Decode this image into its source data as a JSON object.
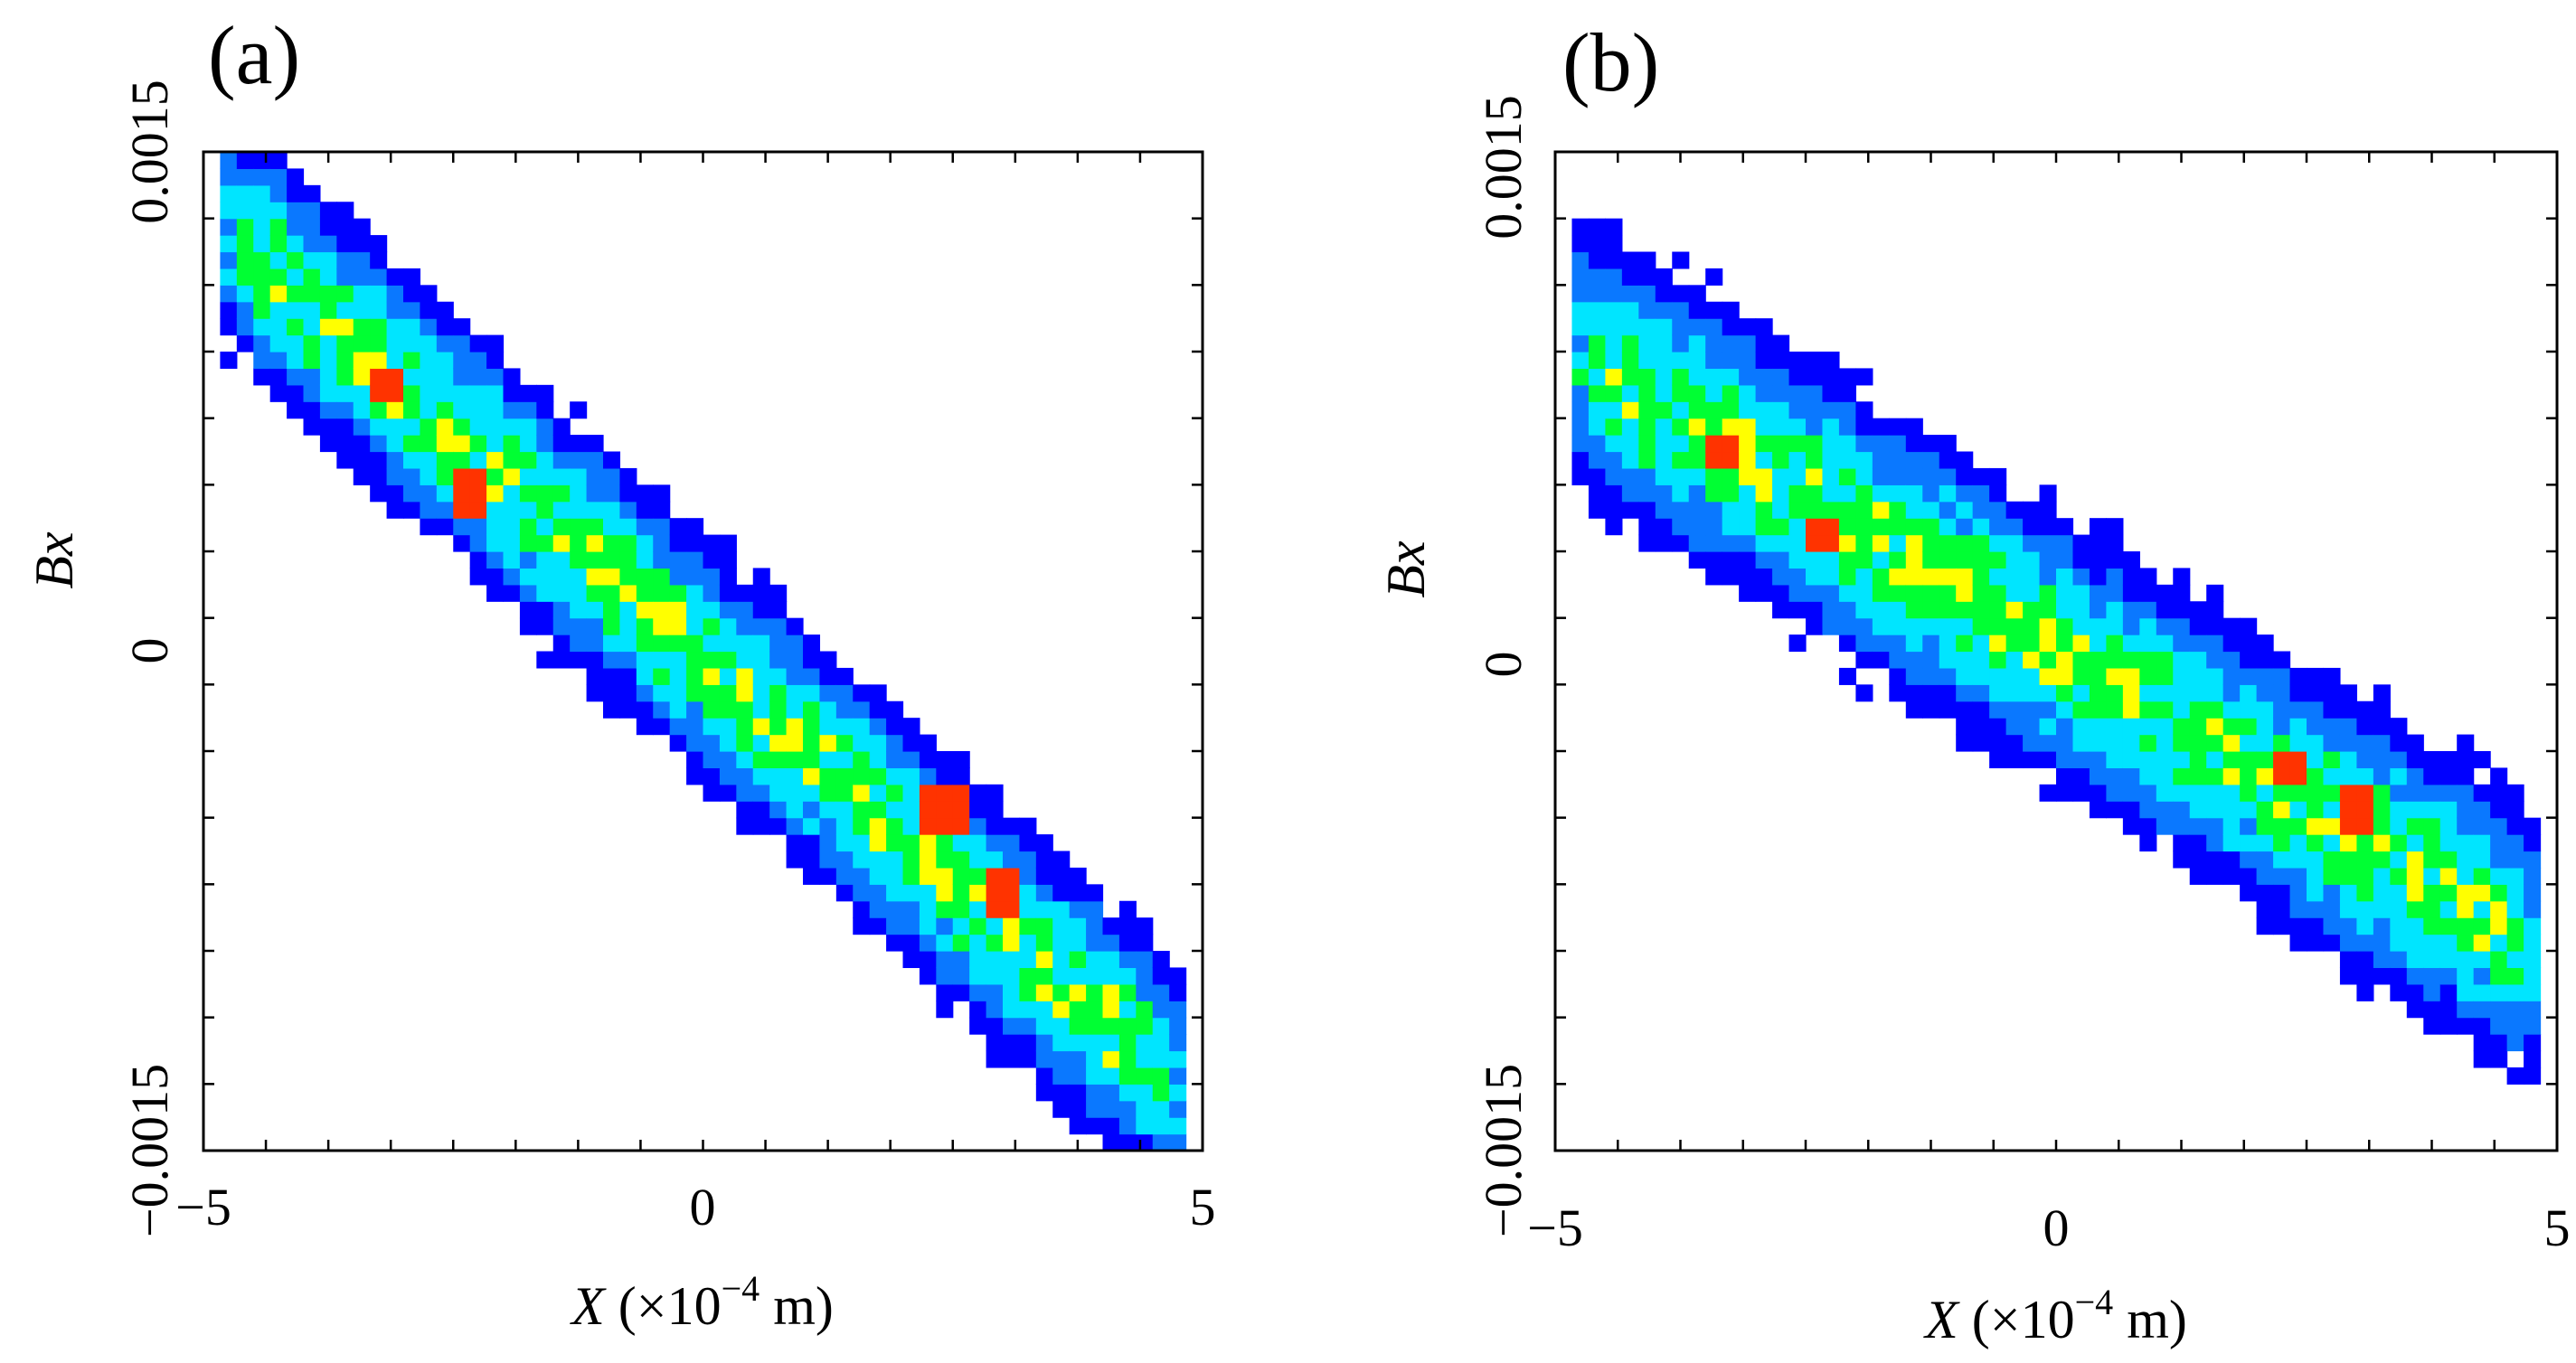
{
  "chart_data": [
    {
      "type": "heatmap",
      "panel_label": "(a)",
      "xlabel": {
        "var": "X",
        "unit_prefix": " (×10",
        "exponent": "−4",
        "unit_suffix": " m)"
      },
      "ylabel": "Bx",
      "xlim": [
        -5,
        5
      ],
      "ylim": [
        -0.0015,
        0.0015
      ],
      "x_ticks": [
        {
          "value": -5,
          "label": "−5"
        },
        {
          "value": 0,
          "label": "0"
        },
        {
          "value": 5,
          "label": "5"
        }
      ],
      "y_ticks": [
        {
          "value": -0.0015,
          "label": "−0.0015"
        },
        {
          "value": 0,
          "label": "0"
        },
        {
          "value": 0.0015,
          "label": "0.0015"
        }
      ],
      "bins": {
        "nx": 60,
        "ny": 60
      },
      "colorscale": [
        "#0000ff",
        "#0a78ff",
        "#00e5ff",
        "#00ff33",
        "#ffff00",
        "#ff3300"
      ],
      "distribution": {
        "core_line": {
          "x0": -3.8,
          "y0": 0.001,
          "x1": 4.0,
          "y1": -0.0011
        },
        "extent_x": [
          -4.8,
          4.8
        ],
        "width_y": 0.00032,
        "hotspots": [
          {
            "x": -3.2,
            "y": 0.0008
          },
          {
            "x": -2.3,
            "y": 0.00048
          },
          {
            "x": 2.4,
            "y": -0.00048
          },
          {
            "x": 3.0,
            "y": -0.00072
          }
        ]
      }
    },
    {
      "type": "heatmap",
      "panel_label": "(b)",
      "xlabel": {
        "var": "X",
        "unit_prefix": " (×10",
        "exponent": "−4",
        "unit_suffix": " m)"
      },
      "ylabel": "Bx",
      "xlim": [
        -5,
        5
      ],
      "ylim": [
        -0.0015,
        0.0015
      ],
      "x_ticks": [
        {
          "value": -5,
          "label": "−5"
        },
        {
          "value": 0,
          "label": "0"
        },
        {
          "value": 5,
          "label": "5"
        }
      ],
      "y_ticks": [
        {
          "value": -0.0015,
          "label": "−0.0015"
        },
        {
          "value": 0,
          "label": "0"
        },
        {
          "value": 0.0015,
          "label": "0.0015"
        }
      ],
      "bins": {
        "nx": 60,
        "ny": 60
      },
      "colorscale": [
        "#0000ff",
        "#0a78ff",
        "#00e5ff",
        "#00ff33",
        "#ffff00",
        "#ff3300"
      ],
      "distribution": {
        "core_line": {
          "x0": -4.0,
          "y0": 0.00075,
          "x1": 4.2,
          "y1": -0.00078
        },
        "extent_x": [
          -4.9,
          4.9
        ],
        "width_y": 0.00036,
        "hotspots": [
          {
            "x": -3.3,
            "y": 0.00058
          },
          {
            "x": -2.4,
            "y": 0.00035
          },
          {
            "x": 2.3,
            "y": -0.00035
          },
          {
            "x": 3.0,
            "y": -0.00048
          }
        ]
      }
    }
  ]
}
